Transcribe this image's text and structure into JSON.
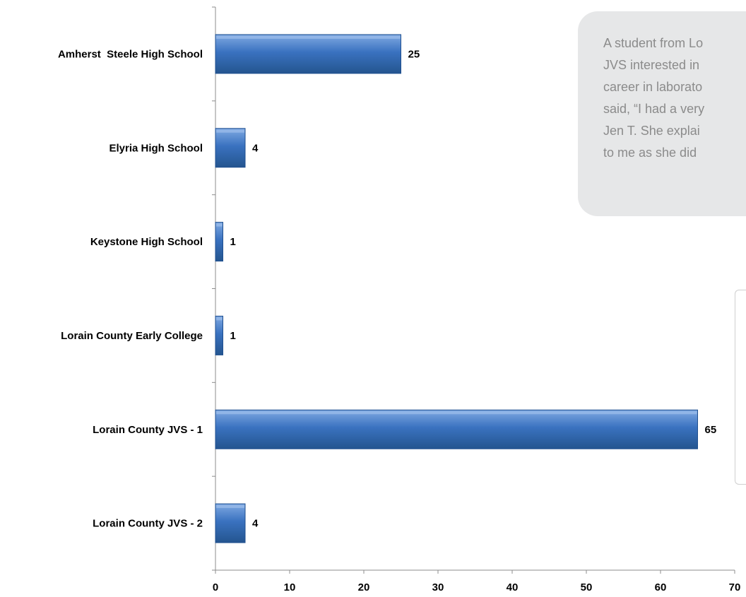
{
  "chart_data": {
    "type": "bar",
    "orientation": "horizontal",
    "categories": [
      "Amherst  Steele High School",
      "Elyria High School",
      "Keystone High School",
      "Lorain County Early College",
      "Lorain County JVS - 1",
      "Lorain County JVS - 2"
    ],
    "values": [
      25,
      4,
      1,
      1,
      65,
      4
    ],
    "data_labels": [
      "25",
      "4",
      "1",
      "1",
      "65",
      "4"
    ],
    "xlim": [
      0,
      70
    ],
    "x_ticks": [
      "0",
      "10",
      "20",
      "30",
      "40",
      "50",
      "60",
      "70"
    ],
    "title": "",
    "xlabel": "",
    "ylabel": "",
    "grid": false,
    "legend": "none",
    "bar_color": "#3a72c0",
    "bar_edge_color": "#1f4f8f"
  },
  "quote": {
    "lines": [
      "A student from Lo",
      "JVS interested in",
      "career in laborato",
      "said, “I had a very",
      "Jen T. She explai",
      "to me as she did"
    ],
    "background": "#e6e7e8",
    "text_color": "#8b8b8b"
  }
}
